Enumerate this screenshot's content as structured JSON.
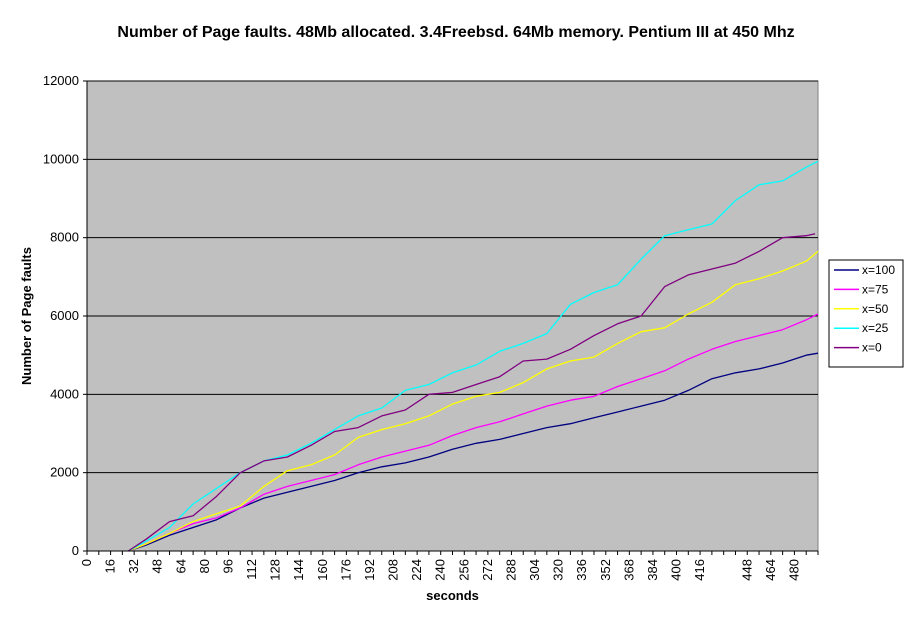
{
  "chart_data": {
    "type": "line",
    "title": "Number of Page faults. 48Mb allocated. 3.4Freebsd. 64Mb memory. Pentium III at 450 Mhz",
    "xlabel": "seconds",
    "ylabel": "Number of Page faults",
    "xlim": [
      0,
      496
    ],
    "ylim": [
      0,
      12000
    ],
    "x_ticks": [
      0,
      16,
      32,
      48,
      64,
      80,
      96,
      112,
      128,
      144,
      160,
      176,
      192,
      208,
      224,
      240,
      256,
      272,
      288,
      304,
      320,
      336,
      352,
      368,
      384,
      400,
      416,
      448,
      464,
      480
    ],
    "x_tick_labels": [
      "0",
      "16",
      "32",
      "48",
      "64",
      "80",
      "96",
      "112",
      "128",
      "144",
      "160",
      "176",
      "192",
      "208",
      "224",
      "240",
      "256",
      "272",
      "288",
      "304",
      "320",
      "336",
      "352",
      "368",
      "384",
      "400",
      "416",
      "448",
      "464",
      "480"
    ],
    "y_ticks": [
      0,
      2000,
      4000,
      6000,
      8000,
      10000,
      12000
    ],
    "y_tick_labels": [
      "0",
      "2000",
      "4000",
      "6000",
      "8000",
      "10000",
      "12000"
    ],
    "grid": "horizontal",
    "plot_background": "#c0c0c0",
    "legend_position": "right",
    "series": [
      {
        "name": "x=100",
        "color": "#000080",
        "x": [
          28,
          40,
          56,
          72,
          88,
          104,
          120,
          136,
          152,
          168,
          184,
          200,
          216,
          232,
          248,
          264,
          280,
          296,
          312,
          328,
          344,
          360,
          376,
          392,
          408,
          424,
          440,
          456,
          472,
          488,
          496
        ],
        "y": [
          0,
          150,
          400,
          600,
          800,
          1100,
          1350,
          1500,
          1650,
          1800,
          2000,
          2150,
          2250,
          2400,
          2600,
          2750,
          2850,
          3000,
          3150,
          3250,
          3400,
          3550,
          3700,
          3850,
          4100,
          4400,
          4550,
          4650,
          4800,
          5000,
          5050
        ]
      },
      {
        "name": "x=75",
        "color": "#ff00ff",
        "x": [
          28,
          40,
          56,
          72,
          88,
          104,
          120,
          136,
          152,
          168,
          184,
          200,
          216,
          232,
          248,
          264,
          280,
          296,
          312,
          328,
          344,
          360,
          376,
          392,
          408,
          424,
          440,
          456,
          472,
          488,
          496
        ],
        "y": [
          0,
          180,
          450,
          700,
          850,
          1100,
          1450,
          1650,
          1800,
          1950,
          2200,
          2400,
          2550,
          2700,
          2950,
          3150,
          3300,
          3500,
          3700,
          3850,
          3950,
          4200,
          4400,
          4600,
          4900,
          5150,
          5350,
          5500,
          5650,
          5900,
          6050
        ]
      },
      {
        "name": "x=50",
        "color": "#ffff00",
        "x": [
          28,
          40,
          56,
          72,
          88,
          104,
          120,
          136,
          152,
          168,
          184,
          200,
          216,
          232,
          248,
          264,
          280,
          296,
          312,
          328,
          344,
          360,
          376,
          392,
          408,
          424,
          440,
          456,
          472,
          488,
          496
        ],
        "y": [
          0,
          180,
          450,
          750,
          950,
          1150,
          1650,
          2050,
          2200,
          2450,
          2900,
          3100,
          3250,
          3450,
          3750,
          3950,
          4050,
          4300,
          4650,
          4850,
          4950,
          5300,
          5600,
          5700,
          6050,
          6350,
          6800,
          6950,
          7150,
          7400,
          7650
        ]
      },
      {
        "name": "x=25",
        "color": "#00ffff",
        "x": [
          28,
          40,
          56,
          72,
          88,
          104,
          120,
          136,
          152,
          168,
          184,
          200,
          216,
          232,
          248,
          264,
          280,
          296,
          312,
          328,
          344,
          360,
          376,
          392,
          408,
          424,
          440,
          456,
          472,
          488,
          496
        ],
        "y": [
          0,
          250,
          600,
          1200,
          1600,
          2000,
          2300,
          2450,
          2750,
          3100,
          3450,
          3650,
          4100,
          4250,
          4550,
          4750,
          5100,
          5300,
          5550,
          6300,
          6600,
          6800,
          7450,
          8050,
          8200,
          8350,
          8950,
          9350,
          9450,
          9800,
          9950
        ]
      },
      {
        "name": "x=0",
        "color": "#800080",
        "x": [
          28,
          40,
          56,
          72,
          88,
          104,
          120,
          136,
          152,
          168,
          184,
          200,
          216,
          232,
          248,
          264,
          280,
          296,
          312,
          328,
          344,
          360,
          376,
          392,
          408,
          424,
          440,
          456,
          472,
          488,
          494
        ],
        "y": [
          0,
          300,
          750,
          900,
          1400,
          2000,
          2300,
          2400,
          2700,
          3050,
          3150,
          3450,
          3600,
          4000,
          4050,
          4250,
          4450,
          4850,
          4900,
          5150,
          5500,
          5800,
          6000,
          6750,
          7050,
          7200,
          7350,
          7650,
          8000,
          8050,
          8100
        ]
      }
    ]
  }
}
